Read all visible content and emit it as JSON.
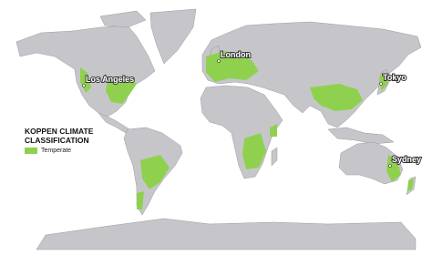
{
  "legend": {
    "title": "KOPPEN CLIMATE CLASSIFICATION",
    "label": "Temperate"
  },
  "cities": [
    "Los Angeles",
    "London",
    "Tokyo",
    "Sydney"
  ]
}
